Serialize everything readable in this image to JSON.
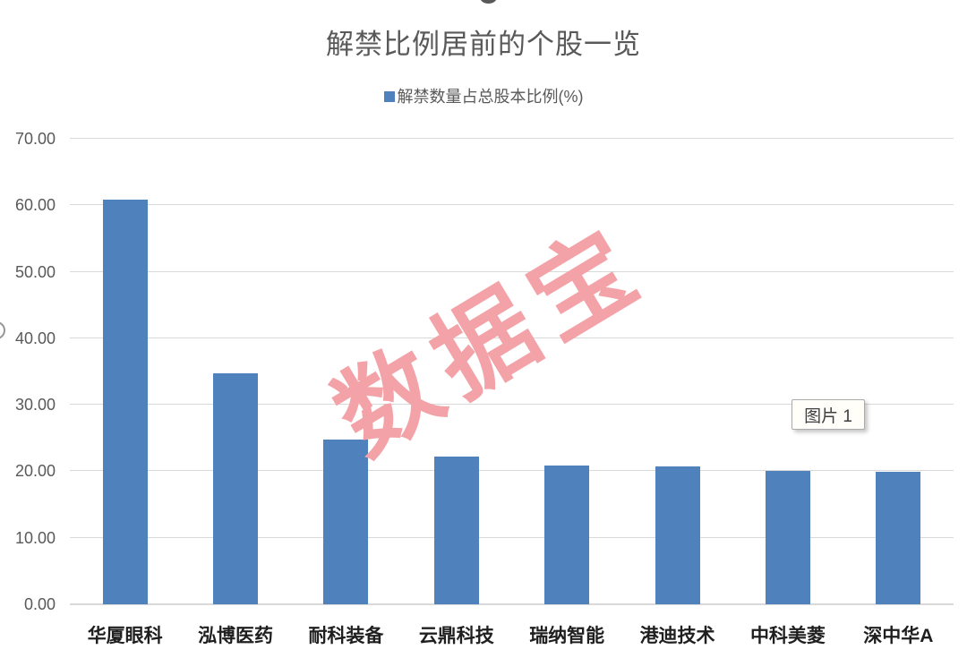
{
  "title": "解禁比例居前的个股一览",
  "legend": {
    "label": "解禁数量占总股本比例(%)",
    "swatch_color": "#4F81BD"
  },
  "watermark": "数据宝",
  "selection": {
    "tooltip_label": "图片 1"
  },
  "chart_data": {
    "type": "bar",
    "title": "解禁比例居前的个股一览",
    "categories": [
      "华厦眼科",
      "泓博医药",
      "耐科装备",
      "云鼎科技",
      "瑞纳智能",
      "港迪技术",
      "中科美菱",
      "深中华A"
    ],
    "series": [
      {
        "name": "解禁数量占总股本比例(%)",
        "values": [
          60.9,
          34.8,
          24.8,
          22.2,
          20.9,
          20.8,
          20.1,
          19.9
        ]
      }
    ],
    "xlabel": "",
    "ylabel": "",
    "ylim": [
      0,
      70
    ],
    "ytick_step": 10,
    "ytick_decimals": 2,
    "grid": true,
    "legend_position": "top",
    "bar_color": "#4F81BD"
  },
  "colors": {
    "bar": "#4F81BD",
    "axis_text": "#595959",
    "category_text": "#1F1F1F",
    "gridline": "#D9D9D9",
    "watermark": "#F3A2A7",
    "tooltip_bg": "#FFFEF9",
    "tooltip_border": "#ABABAB"
  }
}
